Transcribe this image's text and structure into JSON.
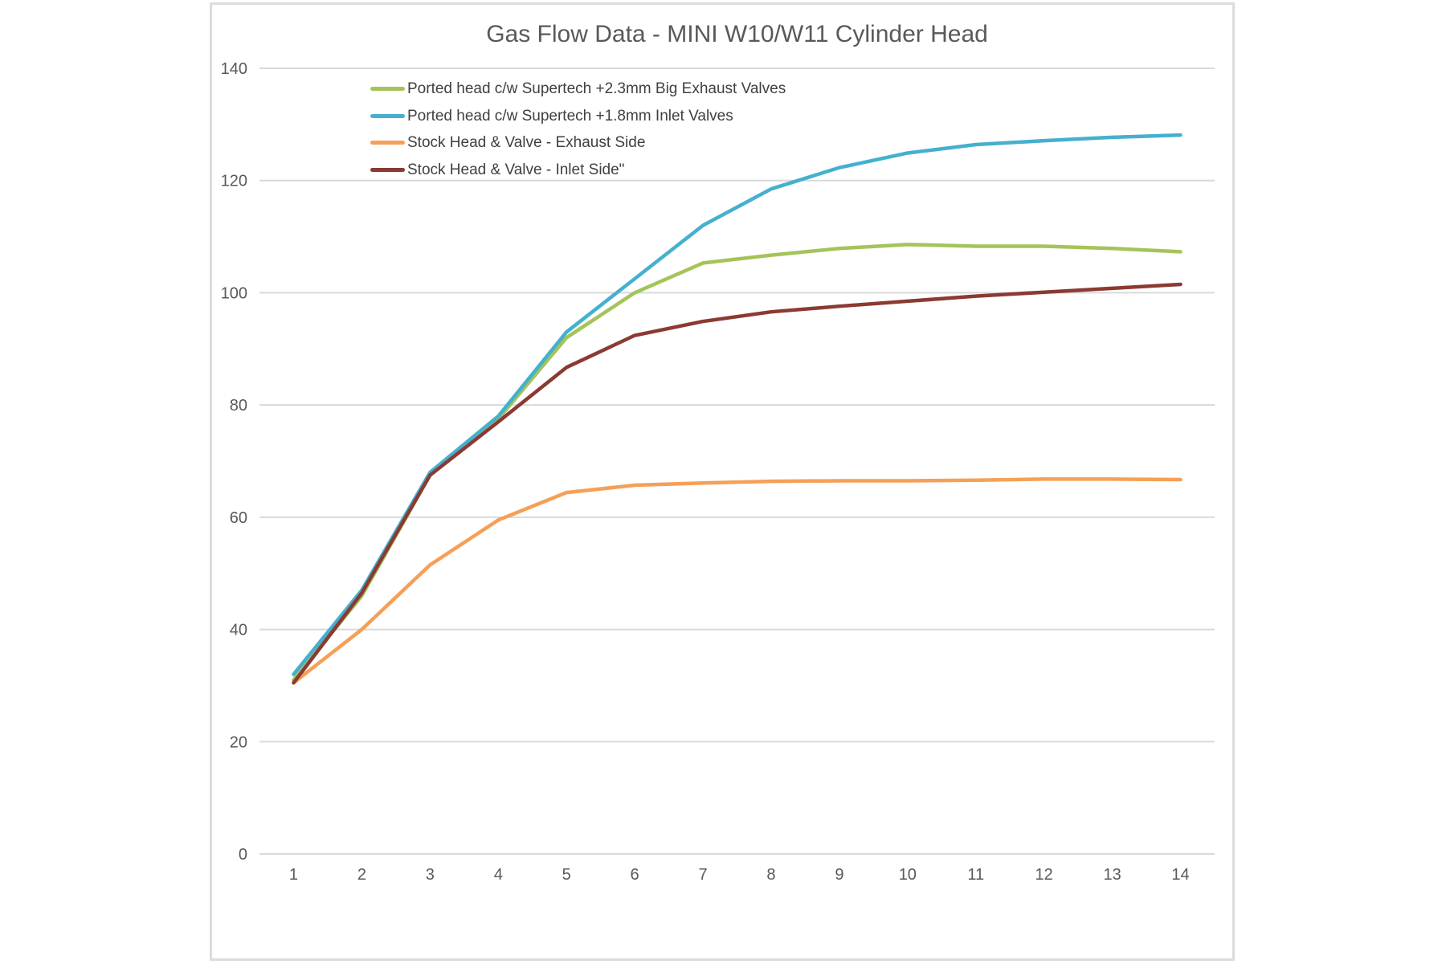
{
  "chart_data": {
    "type": "line",
    "title": "Gas Flow Data - MINI W10/W11 Cylinder Head",
    "xlabel": "",
    "ylabel": "",
    "x": [
      1,
      2,
      3,
      4,
      5,
      6,
      7,
      8,
      9,
      10,
      11,
      12,
      13,
      14
    ],
    "xtick_labels": [
      "1",
      "2",
      "3",
      "4",
      "5",
      "6",
      "7",
      "8",
      "9",
      "10",
      "11",
      "12",
      "13",
      "14"
    ],
    "ylim": [
      0,
      140
    ],
    "ytick_step": 20,
    "ytick_labels": [
      "0",
      "20",
      "40",
      "60",
      "80",
      "100",
      "120",
      "140"
    ],
    "grid": "horizontal",
    "legend_position": "upper-left-inside",
    "series": [
      {
        "name": "Ported head c/w Supertech +2.3mm Big Exhaust Valves",
        "color": "#a4c45a",
        "values": [
          31,
          46,
          67.5,
          77.5,
          92,
          100,
          105.3,
          106.7,
          107.9,
          108.6,
          108.3,
          108.3,
          107.9,
          107.3
        ]
      },
      {
        "name": "Ported head c/w Supertech +1.8mm Inlet Valves",
        "color": "#45b0ce",
        "values": [
          32,
          47,
          68,
          78,
          93,
          102.5,
          112,
          118.5,
          122.3,
          124.9,
          126.4,
          127.1,
          127.7,
          128.1
        ]
      },
      {
        "name": "Stock Head & Valve - Exhaust Side",
        "color": "#f5a057",
        "values": [
          30.5,
          40,
          51.5,
          59.5,
          64.4,
          65.7,
          66.1,
          66.4,
          66.5,
          66.5,
          66.6,
          66.8,
          66.8,
          66.7
        ]
      },
      {
        "name": "Stock Head & Valve - Inlet Side\"",
        "color": "#8b3a33",
        "values": [
          30.5,
          46.5,
          67.5,
          77,
          86.7,
          92.4,
          94.9,
          96.6,
          97.6,
          98.5,
          99.4,
          100.1,
          100.8,
          101.5
        ]
      }
    ],
    "styles": {
      "grid_color": "#d9d9d9",
      "tick_label_color": "#595959",
      "title_color": "#595959",
      "line_width": 4.5
    }
  }
}
